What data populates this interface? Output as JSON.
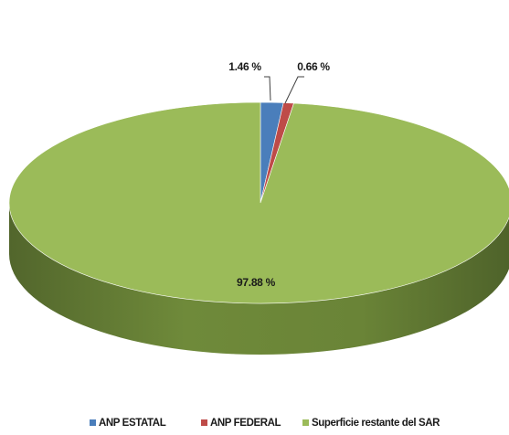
{
  "chart_data": {
    "type": "pie",
    "style": "3d",
    "series": [
      {
        "name": "ANP ESTATAL",
        "value": 1.46,
        "label": "1.46 %",
        "color": "#4a7ebb"
      },
      {
        "name": "ANP FEDERAL",
        "value": 0.66,
        "label": "0.66 %",
        "color": "#be4b48"
      },
      {
        "name": "Superficie restante del SAR",
        "value": 97.88,
        "label": "97.88 %",
        "color": "#9bbb59"
      }
    ],
    "legend_position": "bottom"
  }
}
